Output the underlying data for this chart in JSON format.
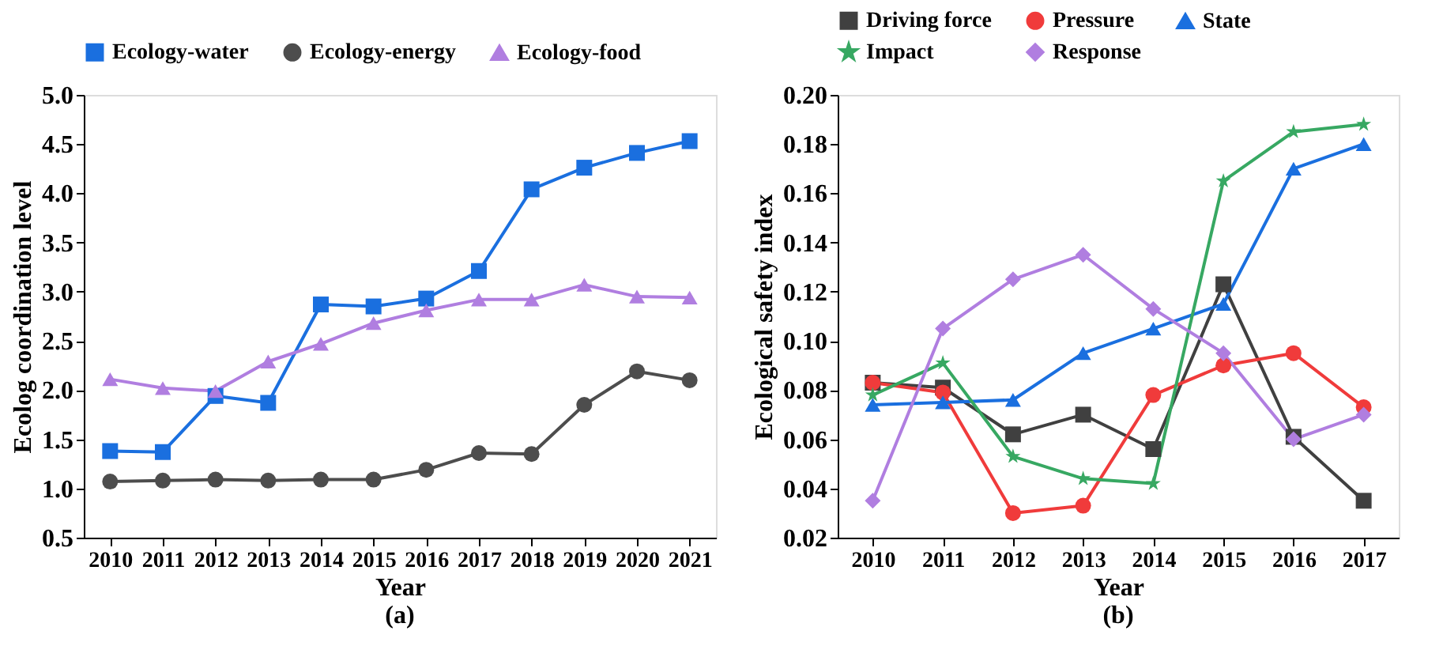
{
  "chart_data": [
    {
      "type": "line",
      "xlabel": "Year",
      "ylabel": "Ecolog coordination level",
      "annotations": [
        "(a)"
      ],
      "categories": [
        "2010",
        "2011",
        "2012",
        "2013",
        "2014",
        "2015",
        "2016",
        "2017",
        "2018",
        "2019",
        "2020",
        "2021"
      ],
      "ylim": [
        0.5,
        5.0
      ],
      "yticks": [
        {
          "value": 0.5,
          "label": "0.5"
        },
        {
          "value": 1.0,
          "label": "1.0"
        },
        {
          "value": 1.5,
          "label": "1.5"
        },
        {
          "value": 2.0,
          "label": "2.0"
        },
        {
          "value": 2.5,
          "label": "2.5"
        },
        {
          "value": 3.0,
          "label": "3.0"
        },
        {
          "value": 3.5,
          "label": "3.5"
        },
        {
          "value": 4.0,
          "label": "4.0"
        },
        {
          "value": 4.5,
          "label": "4.5"
        },
        {
          "value": 5.0,
          "label": "5.0"
        }
      ],
      "grid": false,
      "legend": "top",
      "series": [
        {
          "name": "Ecology-water",
          "color": "#1a6fdf",
          "marker": "square",
          "values": [
            1.38,
            1.37,
            1.94,
            1.87,
            2.87,
            2.85,
            2.93,
            3.21,
            4.04,
            4.26,
            4.41,
            4.53
          ]
        },
        {
          "name": "Ecology-energy",
          "color": "#4d4d4d",
          "marker": "circle",
          "values": [
            1.07,
            1.08,
            1.09,
            1.08,
            1.09,
            1.09,
            1.19,
            1.36,
            1.35,
            1.85,
            2.19,
            2.1
          ]
        },
        {
          "name": "Ecology-food",
          "color": "#b07ee0",
          "marker": "triangle",
          "values": [
            2.11,
            2.02,
            1.99,
            2.29,
            2.47,
            2.68,
            2.81,
            2.92,
            2.92,
            3.07,
            2.95,
            2.94
          ]
        }
      ]
    },
    {
      "type": "line",
      "xlabel": "Year",
      "ylabel": "Ecological safety index",
      "annotations": [
        "(b)"
      ],
      "categories": [
        "2010",
        "2011",
        "2012",
        "2013",
        "2014",
        "2015",
        "2016",
        "2017"
      ],
      "ylim": [
        0.02,
        0.2
      ],
      "yticks": [
        {
          "value": 0.02,
          "label": "0.02"
        },
        {
          "value": 0.04,
          "label": "0.04"
        },
        {
          "value": 0.06,
          "label": "0.06"
        },
        {
          "value": 0.08,
          "label": "0.08"
        },
        {
          "value": 0.1,
          "label": "0.10"
        },
        {
          "value": 0.12,
          "label": "0.12"
        },
        {
          "value": 0.14,
          "label": "0.14"
        },
        {
          "value": 0.16,
          "label": "0.16"
        },
        {
          "value": 0.18,
          "label": "0.18"
        },
        {
          "value": 0.2,
          "label": "0.20"
        }
      ],
      "grid": false,
      "legend": "top",
      "series": [
        {
          "name": "Driving force",
          "color": "#404040",
          "marker": "square",
          "values": [
            0.083,
            0.081,
            0.062,
            0.07,
            0.056,
            0.123,
            0.061,
            0.035
          ]
        },
        {
          "name": "Pressure",
          "color": "#f03b3b",
          "marker": "circle",
          "values": [
            0.083,
            0.079,
            0.03,
            0.033,
            0.078,
            0.09,
            0.095,
            0.073
          ]
        },
        {
          "name": "State",
          "color": "#1a6fdf",
          "marker": "triangle",
          "values": [
            0.074,
            0.075,
            0.076,
            0.095,
            0.105,
            0.115,
            0.17,
            0.18
          ]
        },
        {
          "name": "Impact",
          "color": "#37a862",
          "marker": "star",
          "values": [
            0.078,
            0.091,
            0.053,
            0.044,
            0.042,
            0.165,
            0.185,
            0.188
          ]
        },
        {
          "name": "Response",
          "color": "#b07ee0",
          "marker": "diamond",
          "values": [
            0.035,
            0.105,
            0.125,
            0.135,
            0.113,
            0.095,
            0.06,
            0.07
          ]
        }
      ]
    }
  ]
}
